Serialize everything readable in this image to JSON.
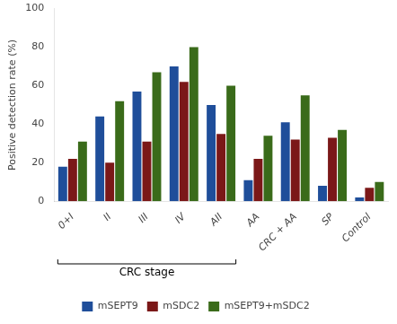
{
  "chart_data": {
    "type": "bar",
    "categories": [
      "0+I",
      "II",
      "III",
      "IV",
      "AII",
      "AA",
      "CRC + AA",
      "SP",
      "Control"
    ],
    "series": [
      {
        "name": "mSEPT9",
        "color": "#1F4E9A",
        "values": [
          18,
          44,
          57,
          70,
          50,
          11,
          41,
          8,
          2
        ]
      },
      {
        "name": "mSDC2",
        "color": "#7B1818",
        "values": [
          22,
          20,
          31,
          62,
          35,
          22,
          32,
          33,
          7
        ]
      },
      {
        "name": "mSEPT9+mSDC2",
        "color": "#3A6B1A",
        "values": [
          31,
          52,
          67,
          80,
          60,
          34,
          55,
          37,
          10
        ]
      }
    ],
    "ylabel": "Positive detection rate (%)",
    "ylim": [
      0,
      100
    ],
    "yticks": [
      0,
      20,
      40,
      60,
      80,
      100
    ],
    "annotations": [
      {
        "text": "CRC stage",
        "from": "0+I",
        "to": "AII"
      }
    ],
    "grid": false,
    "legend": "bottom"
  }
}
